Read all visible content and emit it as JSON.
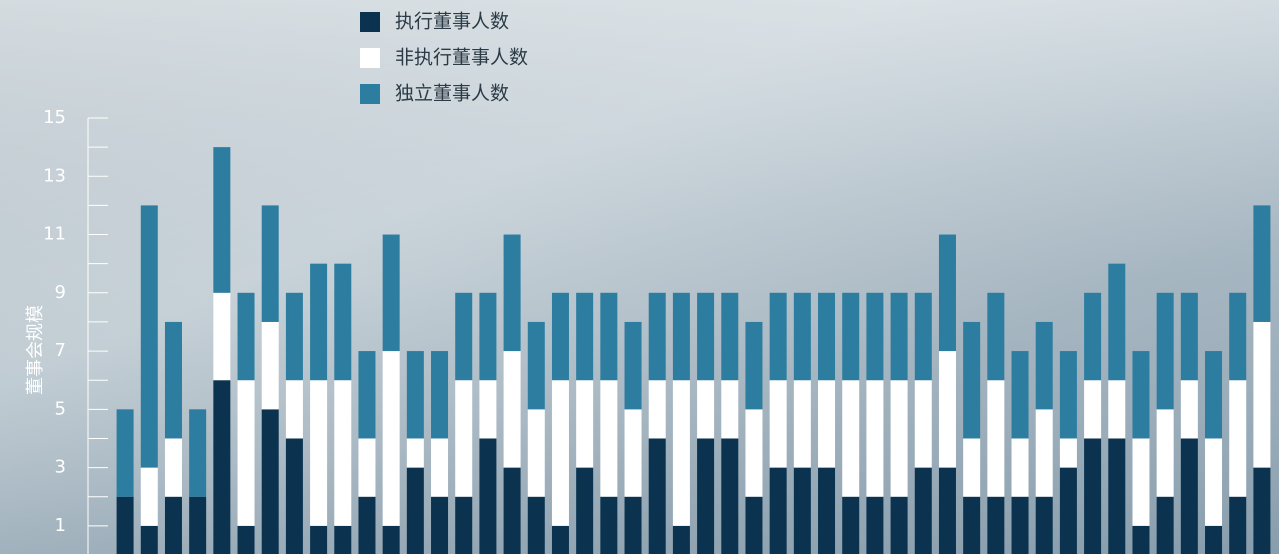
{
  "chart_data": {
    "type": "stacked_bar",
    "y_label": "董事会规模",
    "categories": [
      null,
      null,
      null,
      null,
      null,
      null,
      null,
      null,
      null,
      null,
      null,
      null,
      null,
      null,
      null,
      null,
      null,
      null,
      null,
      null,
      null,
      null,
      null,
      null,
      null,
      null,
      null,
      null,
      null,
      null,
      null,
      null,
      null,
      null,
      null,
      null,
      null,
      null,
      null,
      null,
      null,
      null,
      null,
      null,
      null,
      null,
      null,
      null
    ],
    "series": [
      {
        "name": "执行董事人数",
        "color": "#0b3350",
        "values": [
          2,
          1,
          2,
          2,
          6,
          1,
          5,
          4,
          1,
          1,
          2,
          1,
          3,
          2,
          2,
          4,
          3,
          2,
          1,
          3,
          2,
          2,
          4,
          1,
          4,
          4,
          2,
          3,
          3,
          3,
          2,
          2,
          2,
          3,
          3,
          2,
          2,
          2,
          2,
          3,
          4,
          4,
          1,
          2,
          4,
          1,
          2,
          3
        ]
      },
      {
        "name": "非执行董事人数",
        "color": "#ffffff",
        "values": [
          0,
          2,
          2,
          0,
          3,
          5,
          3,
          2,
          5,
          5,
          2,
          6,
          1,
          2,
          4,
          2,
          4,
          3,
          5,
          3,
          4,
          3,
          2,
          5,
          2,
          2,
          3,
          3,
          3,
          3,
          4,
          4,
          4,
          3,
          4,
          2,
          4,
          2,
          3,
          1,
          2,
          2,
          3,
          3,
          2,
          3,
          4,
          5
        ]
      },
      {
        "name": "独立董事人数",
        "color": "#2c7da0",
        "values": [
          3,
          9,
          4,
          3,
          5,
          3,
          4,
          3,
          4,
          4,
          3,
          4,
          3,
          3,
          3,
          3,
          4,
          3,
          3,
          3,
          3,
          3,
          3,
          3,
          3,
          3,
          3,
          3,
          3,
          3,
          3,
          3,
          3,
          3,
          4,
          4,
          3,
          3,
          3,
          3,
          3,
          4,
          3,
          4,
          3,
          3,
          3,
          4
        ]
      }
    ],
    "ylim": [
      0,
      15
    ],
    "yticks": [
      1,
      3,
      5,
      7,
      9,
      11,
      13,
      15
    ],
    "minor_yticks": [
      2,
      4,
      6,
      8,
      10,
      12,
      14
    ]
  }
}
